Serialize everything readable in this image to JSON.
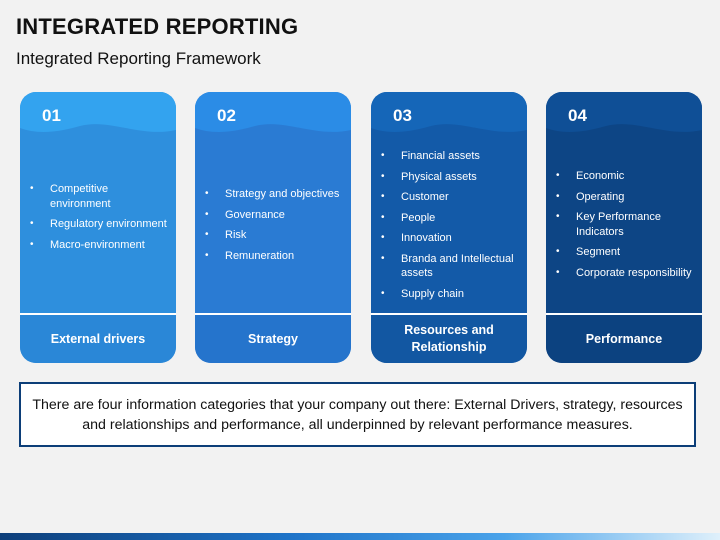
{
  "header": {
    "title": "INTEGRATED REPORTING",
    "subtitle": "Integrated Reporting Framework"
  },
  "cards": [
    {
      "number": "01",
      "items": [
        "Competitive environment",
        "Regulatory environment",
        "Macro-environment"
      ],
      "footer": "External drivers",
      "colors": {
        "top": "#33a3ef",
        "body": "#2e8fdd",
        "footer": "#2a87d7"
      }
    },
    {
      "number": "02",
      "items": [
        "Strategy and objectives",
        "Governance",
        "Risk",
        "Remuneration"
      ],
      "footer": "Strategy",
      "colors": {
        "top": "#2b8ce6",
        "body": "#2a7bd3",
        "footer": "#2574cc"
      }
    },
    {
      "number": "03",
      "items": [
        "Financial assets",
        "Physical assets",
        "Customer",
        "People",
        "Innovation",
        "Branda and Intellectual assets",
        "Supply chain"
      ],
      "footer": "Resources and Relationship",
      "colors": {
        "top": "#1566b8",
        "body": "#135aa8",
        "footer": "#1257a2"
      }
    },
    {
      "number": "04",
      "items": [
        "Economic",
        "Operating",
        "Key Performance Indicators",
        "Segment",
        "Corporate responsibility"
      ],
      "footer": "Performance",
      "colors": {
        "top": "#0f4f96",
        "body": "#0d4585",
        "footer": "#0c4280"
      }
    }
  ],
  "note": "There are four information categories that your company out there: External Drivers, strategy, resources and relationships and performance, all underpinned by relevant performance measures."
}
